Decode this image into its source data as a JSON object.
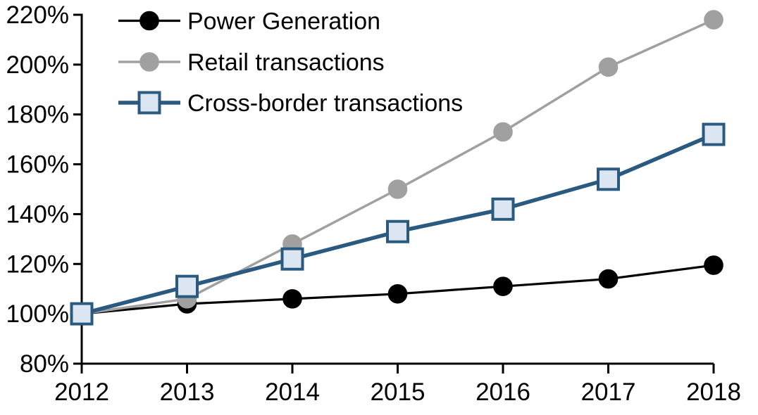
{
  "chart_data": {
    "type": "line",
    "title": "",
    "xlabel": "",
    "ylabel": "",
    "x": [
      2012,
      2013,
      2014,
      2015,
      2016,
      2017,
      2018
    ],
    "xtick_labels": [
      "2012",
      "2013",
      "2014",
      "2015",
      "2016",
      "2017",
      "2018"
    ],
    "ylim": [
      80,
      220
    ],
    "ytick_step": 20,
    "ytick_labels": [
      "80%",
      "100%",
      "120%",
      "140%",
      "160%",
      "180%",
      "200%",
      "220%"
    ],
    "grid": false,
    "legend_position": "top-left",
    "series": [
      {
        "name": "Power Generation",
        "values": [
          100,
          104,
          106,
          108,
          111,
          114,
          119.5
        ],
        "color": "#000000",
        "marker": "circle",
        "marker_fill": "#000000",
        "marker_stroke": "#000000",
        "line_width": 3.2
      },
      {
        "name": "Retail transactions",
        "values": [
          100,
          106,
          128,
          150,
          173,
          199,
          218
        ],
        "color": "#a0a0a0",
        "marker": "circle",
        "marker_fill": "#a0a0a0",
        "marker_stroke": "#a0a0a0",
        "line_width": 3.5
      },
      {
        "name": "Cross-border transactions",
        "values": [
          100,
          111,
          122,
          133,
          142,
          154,
          172
        ],
        "color": "#2a5a80",
        "marker": "square",
        "marker_fill": "#dce6f2",
        "marker_stroke": "#2a5a80",
        "line_width": 5.5
      }
    ]
  },
  "style": {
    "axis_color": "#000000",
    "background": "#ffffff",
    "tick_label_color": "#000000"
  }
}
